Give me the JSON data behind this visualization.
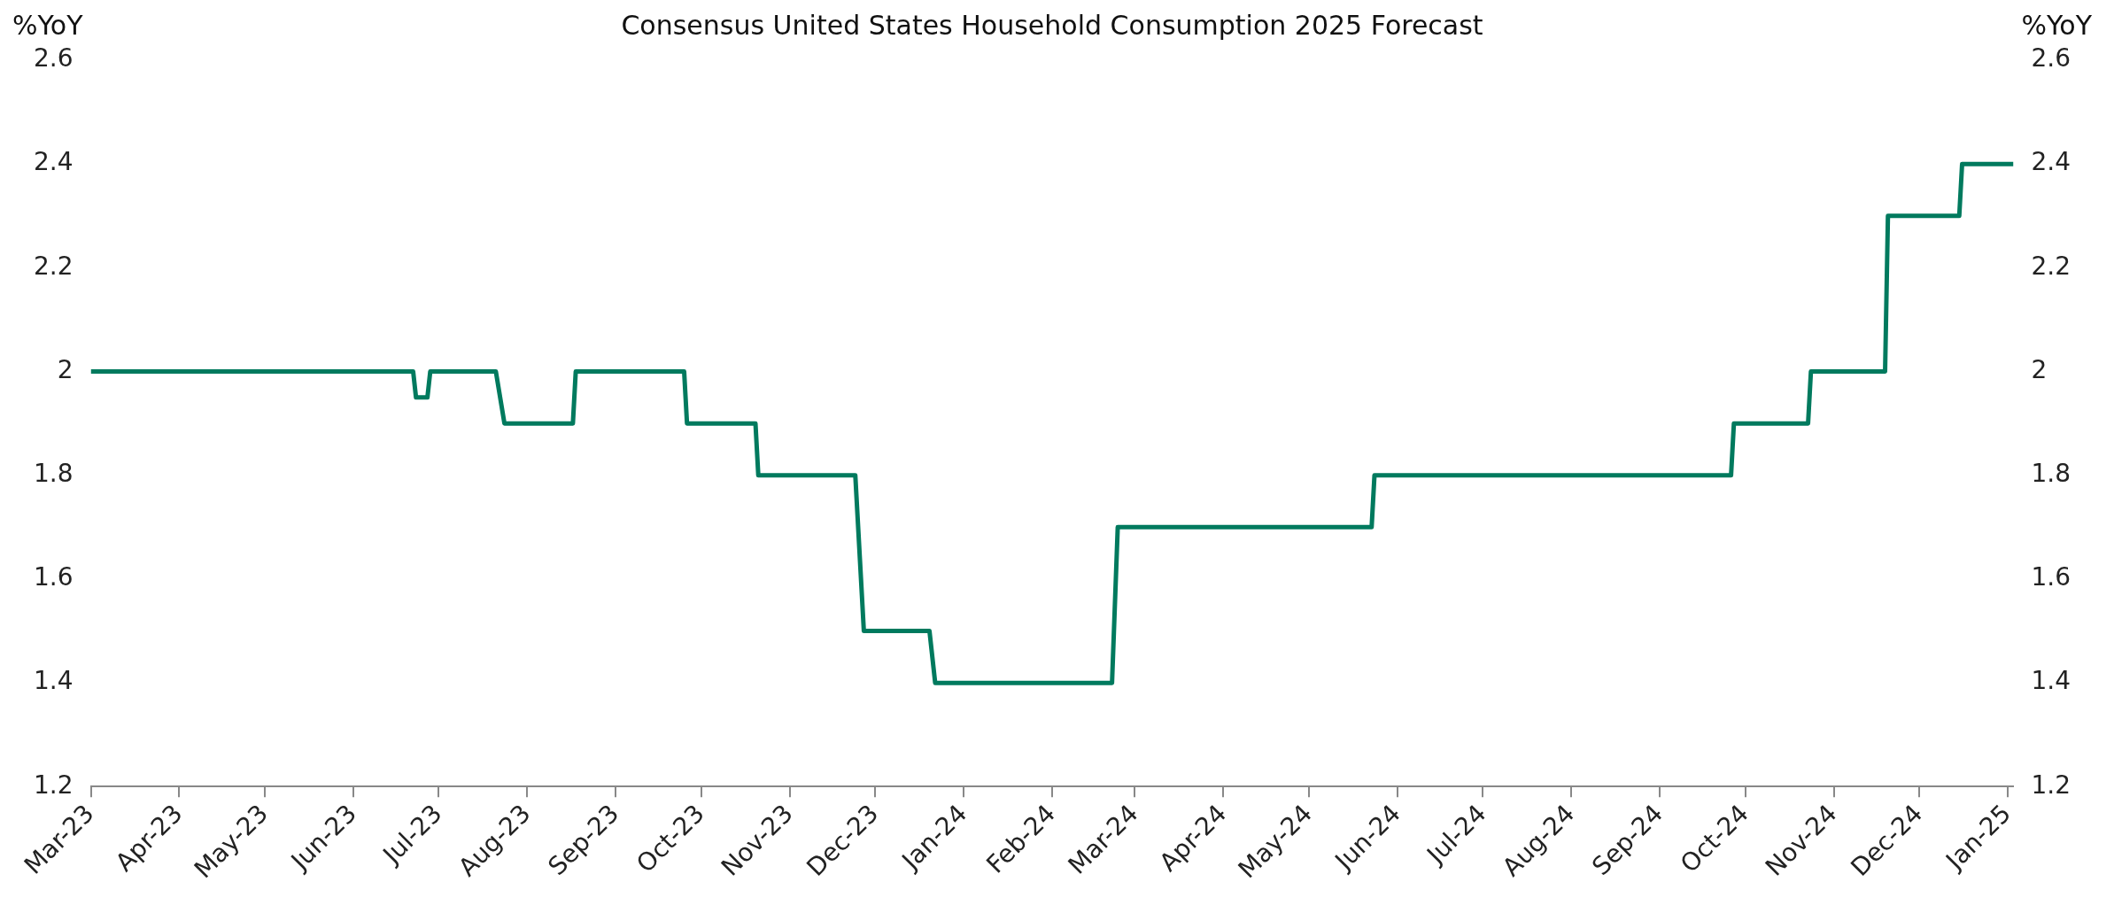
{
  "chart_data": {
    "type": "line",
    "title": "Consensus United States Household Consumption 2025 Forecast",
    "ylabel": "%YoY",
    "y2label": "%YoY",
    "x": [
      "2023-03-01",
      "2023-06-22",
      "2023-06-23",
      "2023-06-27",
      "2023-06-28",
      "2023-07-21",
      "2023-07-24",
      "2023-08-17",
      "2023-08-18",
      "2023-09-25",
      "2023-09-26",
      "2023-10-20",
      "2023-10-21",
      "2023-11-24",
      "2023-11-27",
      "2023-12-20",
      "2023-12-22",
      "2024-02-22",
      "2024-02-24",
      "2024-05-23",
      "2024-05-24",
      "2024-09-26",
      "2024-09-27",
      "2024-10-23",
      "2024-10-24",
      "2024-11-19",
      "2024-11-20",
      "2024-12-15",
      "2024-12-16",
      "2025-01-03"
    ],
    "series": [
      {
        "color": "#007a5e",
        "values": [
          2.0,
          2.0,
          1.95,
          1.95,
          2.0,
          2.0,
          1.9,
          1.9,
          2.0,
          2.0,
          1.9,
          1.9,
          1.8,
          1.8,
          1.5,
          1.5,
          1.4,
          1.4,
          1.7,
          1.7,
          1.8,
          1.8,
          1.9,
          1.9,
          2.0,
          2.0,
          2.3,
          2.3,
          2.4,
          2.4
        ]
      }
    ],
    "xlim": [
      "2023-03-01",
      "2025-01-03"
    ],
    "xticks": [
      {
        "value": "2023-03",
        "label": "Mar-23"
      },
      {
        "value": "2023-04",
        "label": "Apr-23"
      },
      {
        "value": "2023-05",
        "label": "May-23"
      },
      {
        "value": "2023-06",
        "label": "Jun-23"
      },
      {
        "value": "2023-07",
        "label": "Jul-23"
      },
      {
        "value": "2023-08",
        "label": "Aug-23"
      },
      {
        "value": "2023-09",
        "label": "Sep-23"
      },
      {
        "value": "2023-10",
        "label": "Oct-23"
      },
      {
        "value": "2023-11",
        "label": "Nov-23"
      },
      {
        "value": "2023-12",
        "label": "Dec-23"
      },
      {
        "value": "2024-01",
        "label": "Jan-24"
      },
      {
        "value": "2024-02",
        "label": "Feb-24"
      },
      {
        "value": "2024-03",
        "label": "Mar-24"
      },
      {
        "value": "2024-04",
        "label": "Apr-24"
      },
      {
        "value": "2024-05",
        "label": "May-24"
      },
      {
        "value": "2024-06",
        "label": "Jun-24"
      },
      {
        "value": "2024-07",
        "label": "Jul-24"
      },
      {
        "value": "2024-08",
        "label": "Aug-24"
      },
      {
        "value": "2024-09",
        "label": "Sep-24"
      },
      {
        "value": "2024-10",
        "label": "Oct-24"
      },
      {
        "value": "2024-11",
        "label": "Nov-24"
      },
      {
        "value": "2024-12",
        "label": "Dec-24"
      },
      {
        "value": "2025-01",
        "label": "Jan-25"
      }
    ],
    "ylim": [
      1.2,
      2.6
    ],
    "yticks": [
      1.2,
      1.4,
      1.6,
      1.8,
      {
        "value": 2.0,
        "label": "2"
      },
      2.2,
      2.4,
      2.6
    ],
    "y2lim": [
      1.2,
      2.6
    ],
    "y2ticks": [
      1.2,
      1.4,
      1.6,
      1.8,
      {
        "value": 2.0,
        "label": "2"
      },
      2.2,
      2.4,
      2.6
    ],
    "grid": false,
    "legend": false,
    "marker": "none",
    "line_style": "solid"
  }
}
